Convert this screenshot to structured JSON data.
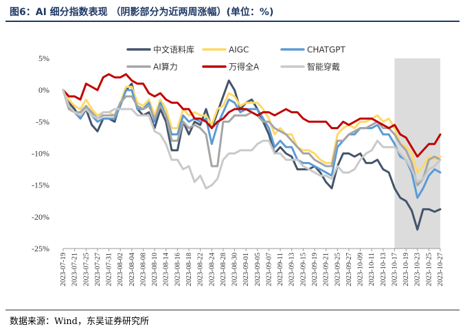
{
  "header": {
    "title": "图6：AI 细分指数表现 （阴影部分为近两周涨幅）(单位：%)"
  },
  "footer": {
    "source": "数据来源：Wind，东吴证券研究所"
  },
  "chart_data": {
    "type": "line",
    "title": "图6：AI 细分指数表现 （阴影部分为近两周涨幅）(单位：%)",
    "xlabel": "",
    "ylabel": "",
    "ylim": [
      -25,
      5
    ],
    "yticks": [
      5,
      0,
      -5,
      -10,
      -15,
      -20,
      -25
    ],
    "ytick_labels": [
      "5%",
      "0%",
      "-5%",
      "-10%",
      "-15%",
      "-20%",
      "-25%"
    ],
    "shaded_region": {
      "from": "2023-10-17",
      "to": "2023-10-27",
      "note": "阴影部分为近两周涨幅",
      "color": "#dcdcdc"
    },
    "legend_position": "top",
    "x": [
      "2023-07-19",
      "2023-07-20",
      "2023-07-21",
      "2023-07-24",
      "2023-07-25",
      "2023-07-26",
      "2023-07-27",
      "2023-07-28",
      "2023-07-31",
      "2023-08-01",
      "2023-08-02",
      "2023-08-03",
      "2023-08-04",
      "2023-08-07",
      "2023-08-08",
      "2023-08-09",
      "2023-08-10",
      "2023-08-11",
      "2023-08-14",
      "2023-08-15",
      "2023-08-16",
      "2023-08-17",
      "2023-08-18",
      "2023-08-21",
      "2023-08-22",
      "2023-08-23",
      "2023-08-24",
      "2023-08-25",
      "2023-08-28",
      "2023-08-29",
      "2023-08-30",
      "2023-08-31",
      "2023-09-01",
      "2023-09-04",
      "2023-09-05",
      "2023-09-06",
      "2023-09-07",
      "2023-09-08",
      "2023-09-11",
      "2023-09-12",
      "2023-09-13",
      "2023-09-14",
      "2023-09-15",
      "2023-09-18",
      "2023-09-19",
      "2023-09-20",
      "2023-09-21",
      "2023-09-22",
      "2023-09-25",
      "2023-09-26",
      "2023-09-27",
      "2023-09-28",
      "2023-10-09",
      "2023-10-10",
      "2023-10-11",
      "2023-10-12",
      "2023-10-13",
      "2023-10-16",
      "2023-10-17",
      "2023-10-18",
      "2023-10-19",
      "2023-10-20",
      "2023-10-23",
      "2023-10-24",
      "2023-10-25",
      "2023-10-26",
      "2023-10-27"
    ],
    "x_tick_labels": [
      "2023-07-19",
      "2023-07-21",
      "2023-07-25",
      "2023-07-27",
      "2023-07-31",
      "2023-08-02",
      "2023-08-04",
      "2023-08-08",
      "2023-08-10",
      "2023-08-14",
      "2023-08-16",
      "2023-08-18",
      "2023-08-22",
      "2023-08-24",
      "2023-08-28",
      "2023-08-30",
      "2023-09-01",
      "2023-09-05",
      "2023-09-07",
      "2023-09-11",
      "2023-09-13",
      "2023-09-15",
      "2023-09-19",
      "2023-09-21",
      "2023-09-25",
      "2023-09-27",
      "2023-10-09",
      "2023-10-11",
      "2023-10-13",
      "2023-10-17",
      "2023-10-19",
      "2023-10-23",
      "2023-10-25",
      "2023-10-27"
    ],
    "series": [
      {
        "name": "中文语料库",
        "color": "#44546a",
        "values": [
          0,
          -2,
          -3,
          -4.5,
          -3,
          -5.5,
          -6.5,
          -4.5,
          -4.5,
          -5,
          -2,
          0,
          1,
          -3,
          -4,
          -3.5,
          -6,
          -3,
          -5,
          -9.5,
          -9.5,
          -5,
          -7,
          -5,
          -5.5,
          -3,
          -6,
          -3.5,
          -1,
          1.5,
          0,
          -3,
          -2,
          -1.5,
          -3,
          -5,
          -7,
          -10,
          -9,
          -10,
          -10.5,
          -12.5,
          -12.5,
          -12.5,
          -12,
          -13,
          -14.5,
          -15.5,
          -12,
          -10,
          -10,
          -10.5,
          -10,
          -11.5,
          -11.5,
          -11,
          -12.5,
          -13,
          -15.5,
          -17,
          -17.5,
          -19,
          -22,
          -18.8,
          -18.8,
          -19.2,
          -18.8
        ]
      },
      {
        "name": "AIGC",
        "color": "#ffd966",
        "values": [
          0,
          -1.5,
          -2.5,
          -3,
          -1.5,
          -3,
          -4,
          -3.5,
          -3.5,
          -4,
          -2,
          0.5,
          0.5,
          -2,
          -2.5,
          -1.5,
          -4,
          -1.5,
          -3,
          -6,
          -6,
          -3,
          -4,
          -3.5,
          -4,
          -4,
          -5.5,
          -3,
          -2.5,
          -0.5,
          -1,
          -2.5,
          -2,
          -2,
          -2,
          -3,
          -4.5,
          -7,
          -6,
          -7,
          -7,
          -9,
          -9.5,
          -9.5,
          -10,
          -11,
          -11.5,
          -11.5,
          -7,
          -6,
          -5.5,
          -6,
          -5,
          -5,
          -4.5,
          -4,
          -5,
          -4.5,
          -6,
          -8.5,
          -9,
          -10,
          -13,
          -12,
          -10.5,
          -11,
          -10.5
        ]
      },
      {
        "name": "CHATGPT",
        "color": "#5b9bd5",
        "values": [
          0,
          -2.5,
          -3.5,
          -4.5,
          -2.5,
          -4,
          -5,
          -4.5,
          -4.5,
          -4.5,
          -2.5,
          0,
          0,
          -3,
          -3,
          -2,
          -5,
          -2,
          -4,
          -7,
          -7,
          -4,
          -5,
          -4.5,
          -5,
          -4.5,
          -8.5,
          -5.5,
          -3.5,
          -1.5,
          -2,
          -3.5,
          -3,
          -3,
          -3,
          -4.5,
          -6,
          -9,
          -8,
          -9,
          -9,
          -11,
          -11.5,
          -11.5,
          -12,
          -12.5,
          -13,
          -13.5,
          -9,
          -8,
          -7,
          -7,
          -6,
          -6,
          -6,
          -5.5,
          -7,
          -7,
          -8.5,
          -10.5,
          -11,
          -13,
          -17,
          -15.5,
          -13.5,
          -12.5,
          -13
        ]
      },
      {
        "name": "AI算力",
        "color": "#a5a5a5",
        "values": [
          0,
          -3,
          -3.5,
          -3.5,
          -2.5,
          -3.5,
          -4.5,
          -4,
          -4,
          -4,
          -2,
          -1,
          -1,
          -2.5,
          -3,
          -2.5,
          -4.5,
          -2.5,
          -4,
          -8,
          -8,
          -5,
          -6,
          -5.5,
          -6,
          -7,
          -12,
          -12,
          -5,
          -5,
          -4,
          -4,
          -4,
          -3.5,
          -4,
          -5,
          -5,
          -6,
          -6.5,
          -7,
          -8,
          -9,
          -10,
          -10,
          -11,
          -11.5,
          -12,
          -12,
          -8,
          -8,
          -7,
          -6.5,
          -6,
          -6,
          -5.5,
          -5,
          -6,
          -6,
          -7,
          -8.5,
          -9.5,
          -11.5,
          -15,
          -14,
          -11,
          -10.5,
          -11
        ]
      },
      {
        "name": "万得全A",
        "color": "#c00000",
        "values": [
          0,
          -1,
          -1,
          -1.5,
          1,
          0.5,
          0,
          2,
          2.5,
          2,
          2,
          2.5,
          1.5,
          1,
          1,
          -0.5,
          -1,
          -0.5,
          -1.5,
          -2,
          -2,
          -3,
          -3,
          -4.5,
          -4.5,
          -5,
          -6,
          -5,
          -4.5,
          -3.5,
          -3,
          -3,
          -3,
          -3.5,
          -4,
          -3.5,
          -3.5,
          -4,
          -3.5,
          -3,
          -3.5,
          -3.5,
          -4.5,
          -5,
          -5,
          -5,
          -5,
          -6,
          -6,
          -5,
          -5.5,
          -5,
          -4.5,
          -4.5,
          -4.5,
          -5,
          -5.5,
          -6,
          -5.5,
          -7,
          -7.5,
          -9,
          -10.5,
          -9.5,
          -8.5,
          -8.5,
          -7
        ]
      },
      {
        "name": "智能穿戴",
        "color": "#c9c9c9",
        "values": [
          0,
          -2.5,
          -3.5,
          -4,
          -3,
          -4,
          -4.5,
          -3.5,
          -3.5,
          -3,
          -3,
          -3,
          -3,
          -4,
          -4,
          -4,
          -6.5,
          -7,
          -8.5,
          -11,
          -11,
          -12.5,
          -12,
          -14.5,
          -13.5,
          -15.5,
          -15,
          -14,
          -11,
          -10,
          -10,
          -9.5,
          -9.5,
          -9.5,
          -8.5,
          -8,
          -8,
          -10,
          -10,
          -11,
          -11,
          -11,
          -12,
          -12.5,
          -13,
          -13.5,
          -13.5,
          -14,
          -12,
          -13,
          -13,
          -12.5,
          -11,
          -10,
          -9.5,
          -8,
          -9,
          -9,
          -9,
          -10,
          -11,
          -12.5,
          -14.5,
          -14,
          -12.5,
          -12,
          -11
        ]
      }
    ]
  }
}
